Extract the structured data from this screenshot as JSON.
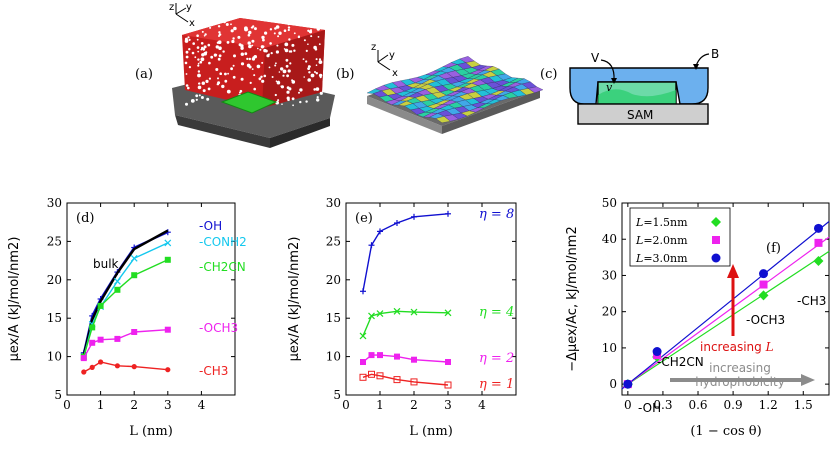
{
  "panels": {
    "a": {
      "label": "(a)",
      "axis_x": "x",
      "axis_y": "y",
      "axis_z": "z"
    },
    "b": {
      "label": "(b)",
      "axis_x": "x",
      "axis_y": "y",
      "axis_z": "z"
    },
    "c": {
      "label": "(c)",
      "v_label": "V",
      "b_label": "B",
      "small_v": "v",
      "sam_label": "SAM"
    }
  },
  "colors": {
    "oh": "#1010d0",
    "conh2": "#14c8ee",
    "ch2cn": "#22dd22",
    "och3": "#ee22ee",
    "ch3": "#ee2222",
    "bulk": "#000000",
    "arrow_red": "#dd1111",
    "arrow_grey": "#8c8c8c"
  },
  "chart_data": [
    {
      "type": "line",
      "panel": "(d)",
      "xlabel": "L (nm)",
      "ylabel": "μex/A (kJ/mol/nm2)",
      "xlim": [
        0,
        5
      ],
      "ylim": [
        5,
        30
      ],
      "xticks": [
        0,
        1,
        2,
        3,
        4
      ],
      "yticks": [
        5,
        10,
        15,
        20,
        25,
        30
      ],
      "series": [
        {
          "name": "-OH",
          "x": [
            0.5,
            0.75,
            1.0,
            1.5,
            2.0,
            3.0
          ],
          "y": [
            10.5,
            15.3,
            17.5,
            21.0,
            24.2,
            26.2
          ]
        },
        {
          "name": "bulk",
          "x": [
            0.5,
            0.75,
            1.0,
            1.5,
            2.0,
            3.0
          ],
          "y": [
            10.2,
            14.8,
            17.2,
            20.9,
            24.0,
            26.4
          ]
        },
        {
          "name": "-CONH2",
          "x": [
            0.5,
            0.75,
            1.0,
            1.5,
            2.0,
            3.0
          ],
          "y": [
            10.0,
            14.2,
            16.5,
            19.8,
            22.8,
            24.8
          ]
        },
        {
          "name": "-CH2CN",
          "x": [
            0.5,
            0.75,
            1.0,
            1.5,
            2.0,
            3.0
          ],
          "y": [
            10.0,
            13.8,
            16.6,
            18.7,
            20.6,
            22.6
          ]
        },
        {
          "name": "-OCH3",
          "x": [
            0.5,
            0.75,
            1.0,
            1.5,
            2.0,
            3.0
          ],
          "y": [
            9.8,
            11.8,
            12.2,
            12.3,
            13.2,
            13.5
          ]
        },
        {
          "name": "-CH3",
          "x": [
            0.5,
            0.75,
            1.0,
            1.5,
            2.0,
            3.0
          ],
          "y": [
            8.0,
            8.6,
            9.3,
            8.8,
            8.7,
            8.3
          ]
        }
      ],
      "series_labels": {
        "oh": "-OH",
        "conh2": "-CONH2",
        "ch2cn": "-CH2CN",
        "och3": "-OCH3",
        "ch3": "-CH3",
        "bulk": "bulk"
      }
    },
    {
      "type": "line",
      "panel": "(e)",
      "xlabel": "L (nm)",
      "ylabel": "μex/A (kJ/mol/nm2)",
      "xlim": [
        0,
        5
      ],
      "ylim": [
        5,
        30
      ],
      "xticks": [
        0,
        1,
        2,
        3,
        4
      ],
      "yticks": [
        5,
        10,
        15,
        20,
        25,
        30
      ],
      "series": [
        {
          "name": "η = 8",
          "x": [
            0.5,
            0.75,
            1.0,
            1.5,
            2.0,
            3.0
          ],
          "y": [
            18.5,
            24.5,
            26.3,
            27.4,
            28.2,
            28.6
          ]
        },
        {
          "name": "η = 4",
          "x": [
            0.5,
            0.75,
            1.0,
            1.5,
            2.0,
            3.0
          ],
          "y": [
            12.7,
            15.3,
            15.6,
            15.9,
            15.8,
            15.7
          ]
        },
        {
          "name": "η = 2",
          "x": [
            0.5,
            0.75,
            1.0,
            1.5,
            2.0,
            3.0
          ],
          "y": [
            9.3,
            10.2,
            10.2,
            10.0,
            9.6,
            9.3
          ]
        },
        {
          "name": "η = 1",
          "x": [
            0.5,
            0.75,
            1.0,
            1.5,
            2.0,
            3.0
          ],
          "y": [
            7.3,
            7.7,
            7.5,
            7.0,
            6.7,
            6.3
          ]
        }
      ]
    },
    {
      "type": "scatter",
      "panel": "(f)",
      "xlabel": "(1 − cos θ)",
      "ylabel": "−Δμex/Ac, kJ/mol/nm2",
      "xlim": [
        -0.05,
        1.72
      ],
      "ylim": [
        -3,
        50
      ],
      "xticks": [
        0,
        0.3,
        0.6,
        0.9,
        1.2,
        1.5
      ],
      "yticks": [
        0,
        10,
        20,
        30,
        40,
        50
      ],
      "legend": {
        "position": "top-left",
        "entries": [
          "L=1.5nm",
          "L=2.0nm",
          "L=3.0nm"
        ]
      },
      "series": [
        {
          "name": "L=1.5nm",
          "x": [
            0.0,
            0.25,
            1.16,
            1.63
          ],
          "y": [
            0,
            7.5,
            24.5,
            34.0
          ],
          "fit_slope": 21.3
        },
        {
          "name": "L=2.0nm",
          "x": [
            0.0,
            0.25,
            1.16,
            1.63
          ],
          "y": [
            0,
            8.0,
            27.5,
            39.0
          ],
          "fit_slope": 23.6
        },
        {
          "name": "L=3.0nm",
          "x": [
            0.0,
            0.25,
            1.16,
            1.63
          ],
          "y": [
            0,
            9.0,
            30.5,
            43.0
          ],
          "fit_slope": 26.1
        }
      ],
      "annotations": {
        "oh": "-OH",
        "ch2cn": "-CH2CN",
        "och3": "-OCH3",
        "ch3": "-CH3",
        "increasing_L": "increasing L",
        "increasing": "increasing",
        "hydrophobicity": "hydrophobicity"
      }
    }
  ]
}
